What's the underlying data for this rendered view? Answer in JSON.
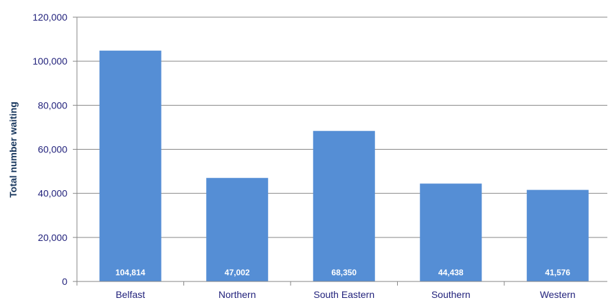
{
  "chart_data": {
    "type": "bar",
    "title": "",
    "xlabel": "",
    "ylabel": "Total number waiting",
    "categories": [
      "Belfast",
      "Northern",
      "South Eastern",
      "Southern",
      "Western"
    ],
    "values": [
      104814,
      47002,
      68350,
      44438,
      41576
    ],
    "value_labels": [
      "104,814",
      "47,002",
      "68,350",
      "44,438",
      "41,576"
    ],
    "ylim": [
      0,
      120000
    ],
    "yticks": [
      0,
      20000,
      40000,
      60000,
      80000,
      100000,
      120000
    ],
    "ytick_labels": [
      "0",
      "20,000",
      "40,000",
      "60,000",
      "80,000",
      "100,000",
      "120,000"
    ],
    "grid": true,
    "legend": "none",
    "bar_color": "#558ed5",
    "text_color": "#1f1f7a"
  }
}
